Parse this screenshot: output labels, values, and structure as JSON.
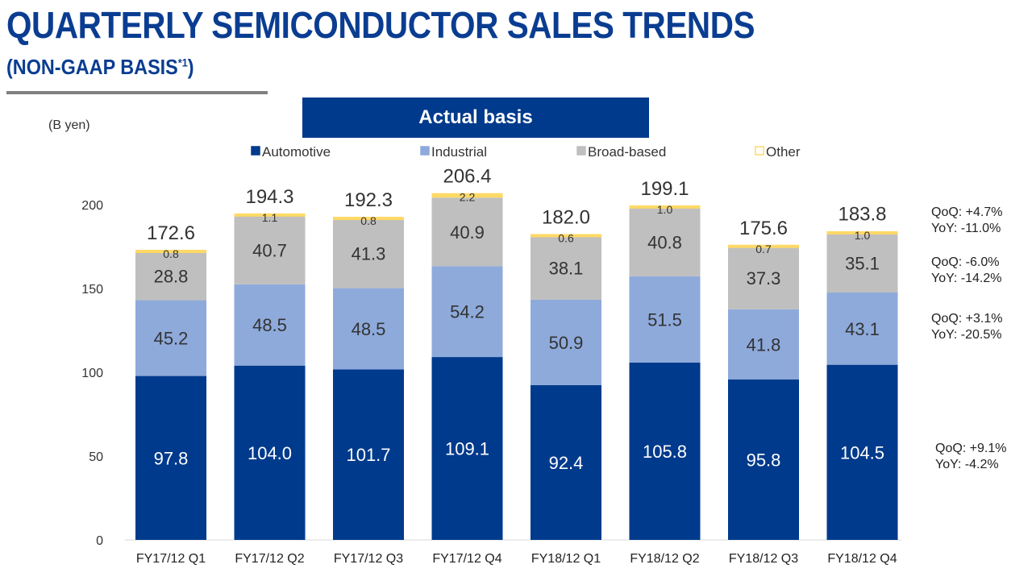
{
  "header": {
    "title": "QUARTERLY SEMICONDUCTOR SALES TRENDS",
    "subtitle": "(NON-GAAP BASIS",
    "subtitle_sup": "*1",
    "subtitle_close": ")"
  },
  "banner": {
    "label": "Actual basis"
  },
  "colors": {
    "automotive": "#003a8c",
    "industrial": "#8eaadb",
    "broad_based": "#bfbfbf",
    "other": "#ffd966",
    "title": "#0a3d91"
  },
  "chart_data": {
    "type": "bar",
    "stacked": true,
    "unit_label": "(B yen)",
    "ylim": [
      0,
      200
    ],
    "yticks": [
      0,
      50,
      100,
      150,
      200
    ],
    "grid": false,
    "legend_position": "top",
    "categories": [
      "FY17/12 Q1",
      "FY17/12 Q2",
      "FY17/12 Q3",
      "FY17/12 Q4",
      "FY18/12 Q1",
      "FY18/12 Q2",
      "FY18/12 Q3",
      "FY18/12 Q4"
    ],
    "series": [
      {
        "name": "Automotive",
        "values": [
          97.8,
          104.0,
          101.7,
          109.1,
          92.4,
          105.8,
          95.8,
          104.5
        ]
      },
      {
        "name": "Industrial",
        "values": [
          45.2,
          48.5,
          48.5,
          54.2,
          50.9,
          51.5,
          41.8,
          43.1
        ]
      },
      {
        "name": "Broad-based",
        "values": [
          28.8,
          40.7,
          41.3,
          40.9,
          38.1,
          40.8,
          37.3,
          35.1
        ]
      },
      {
        "name": "Other",
        "values": [
          0.8,
          1.1,
          0.8,
          2.2,
          0.6,
          1.0,
          0.7,
          1.0
        ]
      }
    ],
    "value_labels": [
      [
        "97.8",
        "104.0",
        "101.7",
        "109.1",
        "92.4",
        "105.8",
        "95.8",
        "104.5"
      ],
      [
        "45.2",
        "48.5",
        "48.5",
        "54.2",
        "50.9",
        "51.5",
        "41.8",
        "43.1"
      ],
      [
        "28.8",
        "40.7",
        "41.3",
        "40.9",
        "38.1",
        "40.8",
        "37.3",
        "35.1"
      ],
      [
        "0.8",
        "1.1",
        "0.8",
        "2.2",
        "0.6",
        "1.0",
        "0.7",
        "1.0"
      ]
    ],
    "totals": [
      172.6,
      194.3,
      192.3,
      206.4,
      182.0,
      199.1,
      175.6,
      183.8
    ],
    "total_labels": [
      "172.6",
      "194.3",
      "192.3",
      "206.4",
      "182.0",
      "199.1",
      "175.6",
      "183.8"
    ],
    "annotations": [
      {
        "segment": "Other",
        "qoq": "QoQ: +4.7%",
        "yoy": "YoY: -11.0%"
      },
      {
        "segment": "Broad-based",
        "qoq": "QoQ: -6.0%",
        "yoy": "YoY: -14.2%"
      },
      {
        "segment": "Industrial",
        "qoq": "QoQ: +3.1%",
        "yoy": "YoY: -20.5%"
      },
      {
        "segment": "Automotive",
        "qoq": "QoQ: +9.1%",
        "yoy": "YoY: -4.2%"
      }
    ]
  }
}
